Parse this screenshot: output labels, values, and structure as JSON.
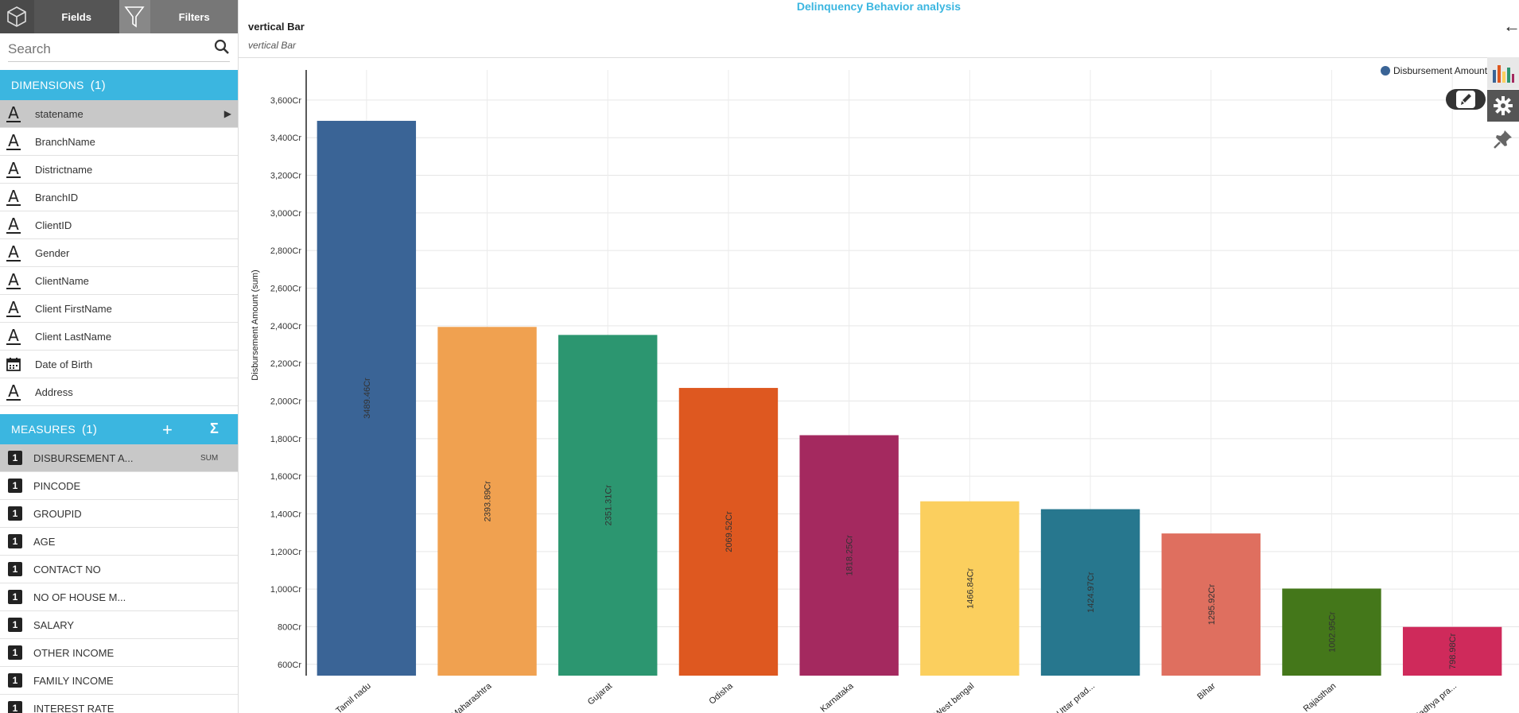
{
  "sidebar": {
    "tabs": {
      "fields": "Fields",
      "filters": "Filters"
    },
    "search_placeholder": "Search",
    "dimensions": {
      "title": "DIMENSIONS",
      "count": "(1)",
      "items": [
        {
          "label": "statename",
          "selected": true
        },
        {
          "label": "BranchName"
        },
        {
          "label": "Districtname"
        },
        {
          "label": "BranchID"
        },
        {
          "label": "ClientID"
        },
        {
          "label": "Gender"
        },
        {
          "label": "ClientName"
        },
        {
          "label": "Client FirstName"
        },
        {
          "label": "Client LastName"
        },
        {
          "label": "Date of Birth",
          "icon": "calendar-icon"
        },
        {
          "label": "Address"
        }
      ]
    },
    "measures": {
      "title": "MEASURES",
      "count": "(1)",
      "plus": "+",
      "sigma": "Σ",
      "items": [
        {
          "label": "DISBURSEMENT A...",
          "agg": "SUM",
          "selected": true
        },
        {
          "label": "PINCODE"
        },
        {
          "label": "GROUPID"
        },
        {
          "label": "AGE"
        },
        {
          "label": "CONTACT NO"
        },
        {
          "label": "NO OF HOUSE M..."
        },
        {
          "label": "SALARY"
        },
        {
          "label": "OTHER INCOME"
        },
        {
          "label": "FAMILY INCOME"
        },
        {
          "label": "INTEREST RATE"
        }
      ]
    }
  },
  "header": {
    "title": "Delinquency Behavior analysis",
    "viz_title": "vertical Bar",
    "viz_subtitle": "vertical Bar"
  },
  "chart_data": {
    "type": "bar",
    "ylabel": "Disbursement Amount (sum)",
    "legend": "Disbursement Amount",
    "legend_position": "top-right",
    "grid": true,
    "ylim": [
      540,
      3760
    ],
    "yticks": [
      600,
      800,
      1000,
      1200,
      1400,
      1600,
      1800,
      2000,
      2200,
      2400,
      2600,
      2800,
      3000,
      3200,
      3400,
      3600
    ],
    "ytick_suffix": "Cr",
    "categories": [
      "Tamil nadu",
      "Maharashtra",
      "Gujarat",
      "Odisha",
      "Karnataka",
      "West bengal",
      "Uttar prad...",
      "Bihar",
      "Rajasthan",
      "Madhya pra..."
    ],
    "values": [
      3489.46,
      2393.89,
      2351.31,
      2069.52,
      1818.25,
      1466.84,
      1424.97,
      1295.92,
      1002.95,
      798.98
    ],
    "value_labels": [
      "3489.46Cr",
      "2393.89Cr",
      "2351.31Cr",
      "2069.52Cr",
      "1818.25Cr",
      "1466.84Cr",
      "1424.97Cr",
      "1295.92Cr",
      "1002.95Cr",
      "798.98Cr"
    ],
    "colors": [
      "#3a6496",
      "#f0a150",
      "#2c9670",
      "#de5820",
      "#a4295f",
      "#fbcf5e",
      "#27778e",
      "#df6f5f",
      "#44771a",
      "#cf2a5b"
    ]
  }
}
